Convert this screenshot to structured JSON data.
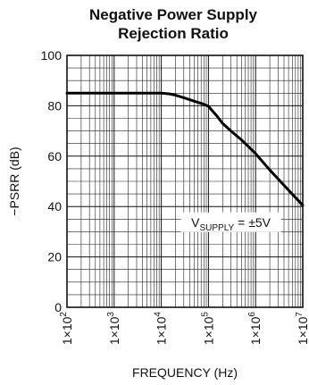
{
  "chart_data": {
    "type": "line",
    "title_line1": "Negative Power Supply",
    "title_line2": "Rejection Ratio",
    "xlabel": "FREQUENCY (Hz)",
    "ylabel": "−PSRR (dB)",
    "x_scale": "log",
    "xlim": [
      100,
      10000000
    ],
    "ylim": [
      0,
      100
    ],
    "x_ticks": [
      {
        "value": 100,
        "mantissa": "1×10",
        "exp": "2"
      },
      {
        "value": 1000,
        "mantissa": "1×10",
        "exp": "3"
      },
      {
        "value": 10000,
        "mantissa": "1×10",
        "exp": "4"
      },
      {
        "value": 100000,
        "mantissa": "1×10",
        "exp": "5"
      },
      {
        "value": 1000000,
        "mantissa": "1×10",
        "exp": "6"
      },
      {
        "value": 10000000,
        "mantissa": "1×10",
        "exp": "7"
      }
    ],
    "y_ticks": [
      "0",
      "20",
      "40",
      "60",
      "80",
      "100"
    ],
    "y_tick_values": [
      0,
      20,
      40,
      60,
      80,
      100
    ],
    "grid": true,
    "series": [
      {
        "x": [
          100,
          1000,
          10000,
          15000,
          20000,
          30000,
          50000,
          80000,
          100000,
          150000,
          200000,
          300000,
          500000,
          1000000,
          2000000,
          5000000,
          10000000
        ],
        "y": [
          85,
          85,
          85,
          84.7,
          84.2,
          83.2,
          81.8,
          80.6,
          79.8,
          76,
          73,
          70,
          66.5,
          61,
          54.5,
          46.5,
          40.5
        ]
      }
    ],
    "annotation": {
      "prefix": "V",
      "subscript": "SUPPLY",
      "suffix": " = ±5V",
      "x": 300000,
      "y": 32
    }
  }
}
